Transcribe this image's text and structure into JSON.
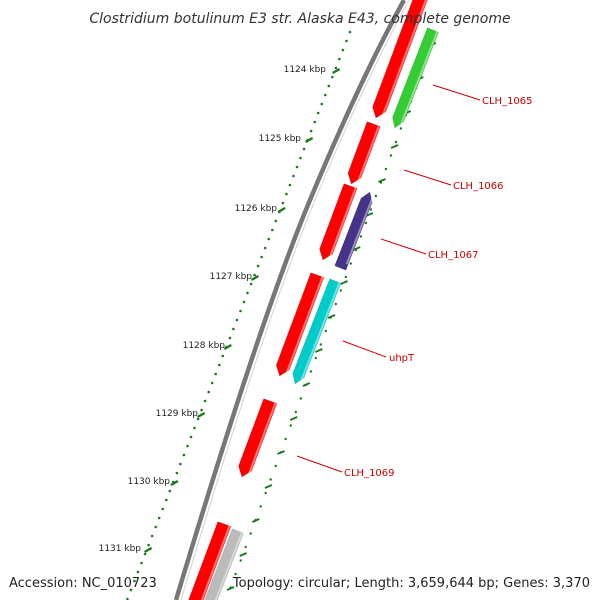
{
  "title": "Clostridium botulinum E3 str. Alaska E43, complete genome",
  "footer": {
    "accession": "Accession: NC_010723",
    "summary": "Topology: circular; Length: 3,659,644 bp; Genes: 3,370"
  },
  "ruler": {
    "tick_color": "#1a7a1a",
    "ticks": [
      {
        "label": "1124 kbp"
      },
      {
        "label": "1125 kbp"
      },
      {
        "label": "1126 kbp"
      },
      {
        "label": "1127 kbp"
      },
      {
        "label": "1128 kbp"
      },
      {
        "label": "1129 kbp"
      },
      {
        "label": "1130 kbp"
      },
      {
        "label": "1131 kbp"
      }
    ]
  },
  "colors": {
    "backbone": "#777777",
    "red": "#ff0000",
    "green": "#33cc33",
    "purple": "#443388",
    "cyan": "#00cccc",
    "gray": "#bbbbbb",
    "label": "#cc0000"
  },
  "gene_labels": [
    {
      "label": "CLH_1065"
    },
    {
      "label": "CLH_1066"
    },
    {
      "label": "CLH_1067"
    },
    {
      "label": "uhpT"
    },
    {
      "label": "CLH_1069"
    }
  ]
}
